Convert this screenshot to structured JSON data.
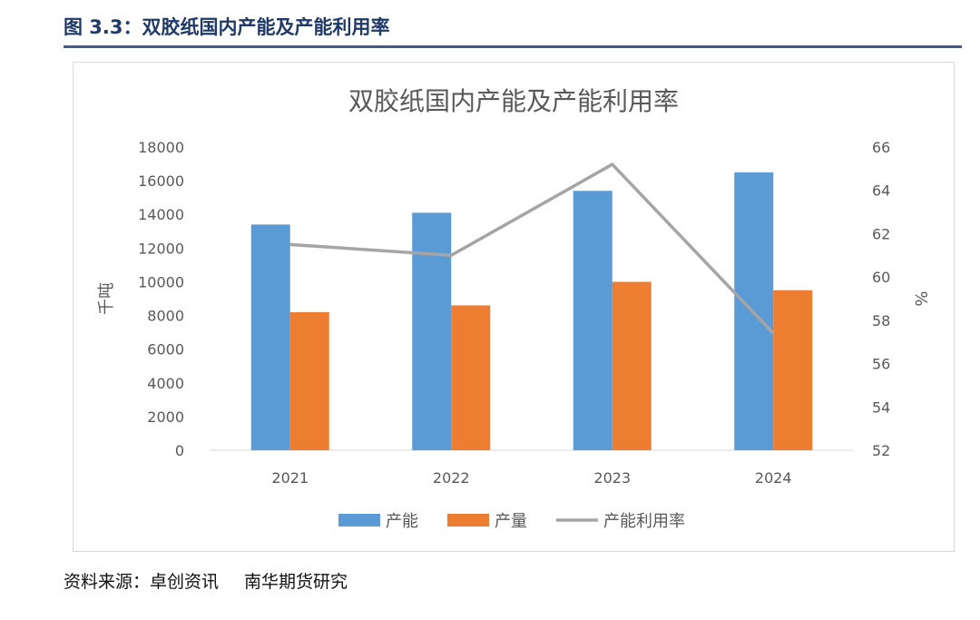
{
  "figure": {
    "title": "图 3.3：双胶纸国内产能及产能利用率",
    "source_label": "资料来源：卓创资讯",
    "source_org": "南华期货研究"
  },
  "colors": {
    "capacity": "#5b9bd5",
    "output": "#ed7d31",
    "utilization": "#a5a5a5",
    "header": "#1f3a68"
  },
  "chart_data": {
    "type": "bar",
    "title": "双胶纸国内产能及产能利用率",
    "categories": [
      "2021",
      "2022",
      "2023",
      "2024"
    ],
    "series": [
      {
        "name": "产能",
        "type": "bar",
        "axis": "left",
        "values": [
          13400,
          14100,
          15400,
          16500
        ]
      },
      {
        "name": "产量",
        "type": "bar",
        "axis": "left",
        "values": [
          8200,
          8600,
          10000,
          9500
        ]
      },
      {
        "name": "产能利用率",
        "type": "line",
        "axis": "right",
        "values": [
          61.5,
          61.0,
          65.2,
          57.4
        ]
      }
    ],
    "ylabel": "千吨",
    "ylim": [
      0,
      18000
    ],
    "yticks": [
      "0",
      "2000",
      "4000",
      "6000",
      "8000",
      "10000",
      "12000",
      "14000",
      "16000",
      "18000"
    ],
    "y2label": "%",
    "y2lim": [
      52,
      66
    ],
    "y2ticks": [
      "52",
      "54",
      "56",
      "58",
      "60",
      "62",
      "64",
      "66"
    ],
    "grid": false,
    "legend": "bottom"
  }
}
